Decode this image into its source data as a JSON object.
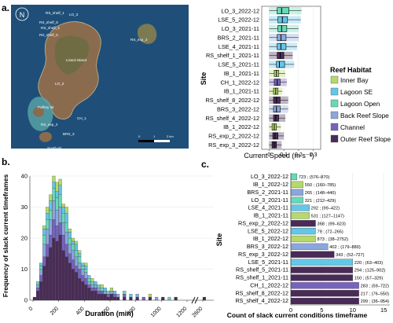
{
  "panels": {
    "a": "a.",
    "b": "b.",
    "c": "c."
  },
  "colors": {
    "Inner Bay": "#b5d96a",
    "Lagoon SE": "#63c7e8",
    "Lagoon Open": "#66d9b8",
    "Back Reef Slope": "#8ba6dc",
    "Channel": "#7563bd",
    "Outer Reef Slope": "#4a2b57"
  },
  "map": {
    "labels": [
      "RS_shelf_1",
      "LO_3",
      "RS_shelf_8",
      "RS_shelf_4",
      "RS_shelf_5",
      "RS_exp_3",
      "Lizard Island",
      "LO_3",
      "Palfrey Isl.",
      "CH_1",
      "RS_exp_2",
      "South Isl.",
      "BRS_3"
    ],
    "north": "N",
    "scale": [
      "0",
      "1",
      "2 km"
    ]
  },
  "chart_data": [
    {
      "type": "box",
      "title": "",
      "xlabel": "Current Speed (m s⁻¹)",
      "ylabel": "Site",
      "xlim": [
        -0.05,
        0.35
      ],
      "xticks": [
        0.0,
        0.1,
        0.2,
        0.3
      ],
      "legend_title": "Reef Habitat",
      "legend": [
        "Inner Bay",
        "Lagoon SE",
        "Lagoon Open",
        "Back Reef Slope",
        "Channel",
        "Outer Reef Slope"
      ],
      "legend_position": "right",
      "sites": [
        {
          "site": "LO_3_2022-12",
          "habitat": "Lagoon Open",
          "q1": 0.055,
          "median": 0.085,
          "q3": 0.135,
          "lo": 0.0,
          "hi": 0.22
        },
        {
          "site": "LSE_5_2022-12",
          "habitat": "Lagoon SE",
          "q1": 0.06,
          "median": 0.09,
          "q3": 0.125,
          "lo": 0.0,
          "hi": 0.215
        },
        {
          "site": "LO_3_2021-11",
          "habitat": "Lagoon Open",
          "q1": 0.06,
          "median": 0.085,
          "q3": 0.12,
          "lo": 0.0,
          "hi": 0.2
        },
        {
          "site": "BRS_2_2021-11",
          "habitat": "Back Reef Slope",
          "q1": 0.055,
          "median": 0.08,
          "q3": 0.115,
          "lo": 0.0,
          "hi": 0.2
        },
        {
          "site": "LSE_4_2021-11",
          "habitat": "Lagoon SE",
          "q1": 0.055,
          "median": 0.08,
          "q3": 0.115,
          "lo": 0.0,
          "hi": 0.19
        },
        {
          "site": "RS_shelf_1_2021-11",
          "habitat": "Outer Reef Slope",
          "q1": 0.055,
          "median": 0.075,
          "q3": 0.1,
          "lo": 0.0,
          "hi": 0.16
        },
        {
          "site": "LSE_5_2021-11",
          "habitat": "Lagoon SE",
          "q1": 0.05,
          "median": 0.07,
          "q3": 0.105,
          "lo": 0.0,
          "hi": 0.17
        },
        {
          "site": "IB_1_2021-11",
          "habitat": "Inner Bay",
          "q1": 0.035,
          "median": 0.05,
          "q3": 0.065,
          "lo": 0.0,
          "hi": 0.11
        },
        {
          "site": "CH_1_2022-12",
          "habitat": "Channel",
          "q1": 0.035,
          "median": 0.055,
          "q3": 0.075,
          "lo": 0.0,
          "hi": 0.12
        },
        {
          "site": "IB_1_2021-11",
          "habitat": "Inner Bay",
          "q1": 0.03,
          "median": 0.045,
          "q3": 0.06,
          "lo": 0.0,
          "hi": 0.09
        },
        {
          "site": "RS_shelf_8_2022-12",
          "habitat": "Outer Reef Slope",
          "q1": 0.03,
          "median": 0.05,
          "q3": 0.075,
          "lo": 0.0,
          "hi": 0.13
        },
        {
          "site": "BRS_3_2022-12",
          "habitat": "Back Reef Slope",
          "q1": 0.03,
          "median": 0.05,
          "q3": 0.075,
          "lo": 0.0,
          "hi": 0.13
        },
        {
          "site": "RS_shelf_4_2022-12",
          "habitat": "Outer Reef Slope",
          "q1": 0.03,
          "median": 0.045,
          "q3": 0.065,
          "lo": 0.0,
          "hi": 0.11
        },
        {
          "site": "IB_1_2022-12",
          "habitat": "Inner Bay",
          "q1": 0.02,
          "median": 0.035,
          "q3": 0.05,
          "lo": 0.0,
          "hi": 0.08
        },
        {
          "site": "RS_exp_2_2022-12",
          "habitat": "Outer Reef Slope",
          "q1": 0.025,
          "median": 0.04,
          "q3": 0.06,
          "lo": 0.0,
          "hi": 0.1
        },
        {
          "site": "RS_exp_3_2022-12",
          "habitat": "Outer Reef Slope",
          "q1": 0.02,
          "median": 0.035,
          "q3": 0.05,
          "lo": 0.0,
          "hi": 0.085
        }
      ]
    },
    {
      "type": "bar",
      "title": "",
      "xlabel": "Duration (min)",
      "ylabel": "Frequency of slack current timeframes",
      "ylim": [
        0,
        40
      ],
      "yticks": [
        0,
        10,
        20,
        30,
        40
      ],
      "xticks": [
        "0",
        "200",
        "400",
        "600",
        "800",
        "1000",
        "1200",
        "2600"
      ],
      "stacked_order": [
        "Outer Reef Slope",
        "Channel",
        "Back Reef Slope",
        "Lagoon Open",
        "Lagoon SE",
        "Inner Bay"
      ],
      "bins": [
        {
          "x": 0,
          "values": [
            1,
            0,
            0,
            0,
            0,
            0
          ]
        },
        {
          "x": 25,
          "values": [
            3,
            1,
            1,
            1,
            0,
            0
          ]
        },
        {
          "x": 50,
          "values": [
            6,
            2,
            2,
            1,
            1,
            0
          ]
        },
        {
          "x": 75,
          "values": [
            11,
            3,
            4,
            3,
            2,
            1
          ]
        },
        {
          "x": 100,
          "values": [
            14,
            4,
            5,
            3,
            2,
            2
          ]
        },
        {
          "x": 125,
          "values": [
            17,
            4,
            5,
            3,
            3,
            2
          ]
        },
        {
          "x": 150,
          "values": [
            20,
            6,
            6,
            4,
            2,
            2
          ]
        },
        {
          "x": 175,
          "values": [
            19,
            5,
            5,
            4,
            2,
            3
          ]
        },
        {
          "x": 200,
          "values": [
            21,
            4,
            5,
            4,
            3,
            2
          ]
        },
        {
          "x": 225,
          "values": [
            16,
            5,
            4,
            3,
            2,
            1
          ]
        },
        {
          "x": 250,
          "values": [
            14,
            4,
            4,
            3,
            3,
            2
          ]
        },
        {
          "x": 275,
          "values": [
            12,
            3,
            3,
            2,
            2,
            1
          ]
        },
        {
          "x": 300,
          "values": [
            10,
            3,
            3,
            2,
            1,
            1
          ]
        },
        {
          "x": 325,
          "values": [
            9,
            2,
            3,
            2,
            2,
            1
          ]
        },
        {
          "x": 350,
          "values": [
            7,
            3,
            2,
            2,
            1,
            1
          ]
        },
        {
          "x": 375,
          "values": [
            6,
            2,
            2,
            1,
            1,
            0
          ]
        },
        {
          "x": 400,
          "values": [
            5,
            2,
            2,
            1,
            1,
            1
          ]
        },
        {
          "x": 425,
          "values": [
            4,
            1,
            1,
            1,
            1,
            0
          ]
        },
        {
          "x": 450,
          "values": [
            3,
            1,
            1,
            1,
            0,
            1
          ]
        },
        {
          "x": 475,
          "values": [
            3,
            1,
            1,
            0,
            1,
            0
          ]
        },
        {
          "x": 500,
          "values": [
            2,
            1,
            1,
            1,
            0,
            0
          ]
        },
        {
          "x": 525,
          "values": [
            2,
            1,
            0,
            1,
            0,
            1
          ]
        },
        {
          "x": 550,
          "values": [
            2,
            0,
            1,
            0,
            1,
            0
          ]
        },
        {
          "x": 575,
          "values": [
            1,
            1,
            0,
            1,
            0,
            0
          ]
        },
        {
          "x": 600,
          "values": [
            2,
            0,
            1,
            0,
            0,
            1
          ]
        },
        {
          "x": 625,
          "values": [
            1,
            1,
            0,
            0,
            1,
            0
          ]
        },
        {
          "x": 650,
          "values": [
            1,
            0,
            1,
            0,
            0,
            0
          ]
        },
        {
          "x": 700,
          "values": [
            1,
            1,
            0,
            1,
            0,
            0
          ]
        },
        {
          "x": 750,
          "values": [
            1,
            0,
            0,
            0,
            1,
            0
          ]
        },
        {
          "x": 800,
          "values": [
            1,
            0,
            1,
            0,
            0,
            0
          ]
        },
        {
          "x": 850,
          "values": [
            0,
            1,
            0,
            0,
            0,
            0
          ]
        },
        {
          "x": 900,
          "values": [
            1,
            0,
            0,
            0,
            0,
            1
          ]
        },
        {
          "x": 950,
          "values": [
            0,
            0,
            1,
            0,
            0,
            0
          ]
        },
        {
          "x": 1000,
          "values": [
            1,
            0,
            0,
            0,
            0,
            0
          ]
        },
        {
          "x": 1050,
          "values": [
            0,
            0,
            0,
            1,
            0,
            0
          ]
        },
        {
          "x": 1100,
          "values": [
            1,
            0,
            0,
            0,
            0,
            0
          ]
        },
        {
          "x": 2600,
          "values": [
            1,
            0,
            0,
            0,
            0,
            0
          ]
        }
      ]
    },
    {
      "type": "bar",
      "orientation": "horizontal",
      "title": "",
      "xlabel": "Count of slack current conditions timeframe",
      "ylabel": "Site",
      "xlim": [
        0,
        16
      ],
      "xticks": [
        0,
        5,
        10,
        15
      ],
      "bars": [
        {
          "site": "LO_3_2022-12",
          "habitat": "Lagoon Open",
          "count": 1,
          "label": "723 ; (576–870)"
        },
        {
          "site": "IB_1_2022-12",
          "habitat": "Inner Bay",
          "count": 2,
          "label": "550 ; (160–785)"
        },
        {
          "site": "BRS_2_2021-11",
          "habitat": "Back Reef Slope",
          "count": 2,
          "label": "265 ; (148–440)"
        },
        {
          "site": "LO_3_2021-11",
          "habitat": "Lagoon Open",
          "count": 2,
          "label": "321 ; (212–429)"
        },
        {
          "site": "LSE_4_2021-11",
          "habitat": "Lagoon SE",
          "count": 3,
          "label": "292 ; (99–422)"
        },
        {
          "site": "IB_1_2021-11",
          "habitat": "Inner Bay",
          "count": 3,
          "label": "531 ; (127–1147)"
        },
        {
          "site": "RS_exp_2_2022-12",
          "habitat": "Outer Reef Slope",
          "count": 4,
          "label": "368 ; (99–623)"
        },
        {
          "site": "LSE_5_2022-12",
          "habitat": "Lagoon SE",
          "count": 4,
          "label": "79 ; (72–265)"
        },
        {
          "site": "IB_1_2022-12",
          "habitat": "Inner Bay",
          "count": 4,
          "label": "873 ; (38–2752)"
        },
        {
          "site": "BRS_3_2022-12",
          "habitat": "Back Reef Slope",
          "count": 6,
          "label": "402 ; (179–880)"
        },
        {
          "site": "RS_exp_3_2022-12",
          "habitat": "Outer Reef Slope",
          "count": 7,
          "label": "343 ; (52–727)"
        },
        {
          "site": "LSE_5_2021-11",
          "habitat": "Lagoon SE",
          "count": 10,
          "label": "220 ; (63–403)"
        },
        {
          "site": "RS_shelf_5_2021-11",
          "habitat": "Outer Reef Slope",
          "count": 10,
          "label": "294 ; (125–902)"
        },
        {
          "site": "RS_shelf_1_2021-11",
          "habitat": "Outer Reef Slope",
          "count": 10,
          "label": "150 ; (57–329)"
        },
        {
          "site": "CH_1_2022-12",
          "habitat": "Channel",
          "count": 11,
          "label": "283 ; (59–722)"
        },
        {
          "site": "RS_shelf_8_2022-12",
          "habitat": "Outer Reef Slope",
          "count": 11,
          "label": "217 ; (76–550)"
        },
        {
          "site": "RS_shelf_4_2022-12",
          "habitat": "Outer Reef Slope",
          "count": 11,
          "label": "299 ; (36–954)"
        }
      ]
    }
  ]
}
